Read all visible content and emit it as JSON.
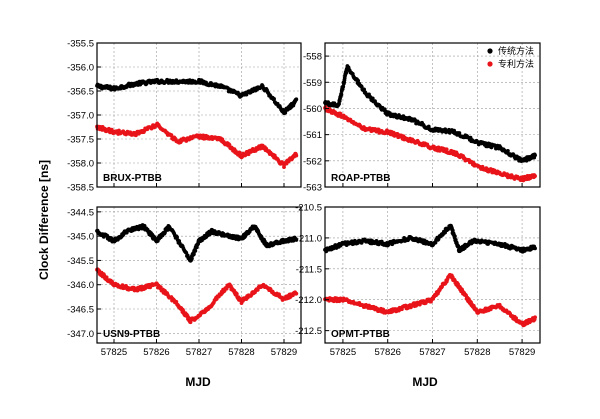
{
  "figure": {
    "ylabel": "Clock Difference [ns]",
    "xlabel_left": "MJD",
    "xlabel_right": "MJD"
  },
  "legend": {
    "items": [
      {
        "label": "传统方法",
        "color": "#000000"
      },
      {
        "label": "专利方法",
        "color": "#e8141a"
      }
    ]
  },
  "chart_data": [
    {
      "type": "scatter",
      "label": "BRUX-PTBB",
      "xlim": [
        57824.6,
        57829.4
      ],
      "ylim": [
        -358.5,
        -355.5
      ],
      "yticks": [
        "-355.5",
        "-356.0",
        "-356.5",
        "-357.0",
        "-357.5",
        "-358.0",
        "-358.5"
      ],
      "xticks": [],
      "series": [
        {
          "color": "#000000",
          "points": [
            [
              57824.6,
              -356.4
            ],
            [
              57825.0,
              -356.45
            ],
            [
              57825.5,
              -356.35
            ],
            [
              57826.0,
              -356.3
            ],
            [
              57826.5,
              -356.3
            ],
            [
              57827.0,
              -356.3
            ],
            [
              57827.5,
              -356.4
            ],
            [
              57828.0,
              -356.6
            ],
            [
              57828.5,
              -356.4
            ],
            [
              57829.0,
              -356.95
            ],
            [
              57829.3,
              -356.7
            ]
          ]
        },
        {
          "color": "#e8141a",
          "points": [
            [
              57824.6,
              -357.25
            ],
            [
              57825.0,
              -357.35
            ],
            [
              57825.5,
              -357.4
            ],
            [
              57826.0,
              -357.2
            ],
            [
              57826.5,
              -357.55
            ],
            [
              57827.0,
              -357.45
            ],
            [
              57827.5,
              -357.5
            ],
            [
              57828.0,
              -357.85
            ],
            [
              57828.5,
              -357.65
            ],
            [
              57829.0,
              -358.05
            ],
            [
              57829.3,
              -357.8
            ]
          ]
        }
      ]
    },
    {
      "type": "scatter",
      "label": "ROAP-PTBB",
      "xlim": [
        57824.6,
        57829.4
      ],
      "ylim": [
        -563,
        -557.5
      ],
      "yticks": [
        "-558",
        "-559",
        "-560",
        "-561",
        "-562",
        "-563"
      ],
      "xticks": [],
      "series": [
        {
          "color": "#000000",
          "points": [
            [
              57824.6,
              -559.8
            ],
            [
              57824.9,
              -559.9
            ],
            [
              57825.1,
              -558.4
            ],
            [
              57825.5,
              -559.4
            ],
            [
              57826.0,
              -560.2
            ],
            [
              57826.5,
              -560.4
            ],
            [
              57827.0,
              -560.8
            ],
            [
              57827.5,
              -560.9
            ],
            [
              57828.0,
              -561.3
            ],
            [
              57828.5,
              -561.5
            ],
            [
              57829.0,
              -562.0
            ],
            [
              57829.3,
              -561.8
            ]
          ]
        },
        {
          "color": "#e8141a",
          "points": [
            [
              57824.6,
              -560.0
            ],
            [
              57825.0,
              -560.3
            ],
            [
              57825.5,
              -560.8
            ],
            [
              57826.0,
              -560.9
            ],
            [
              57826.5,
              -561.2
            ],
            [
              57827.0,
              -561.5
            ],
            [
              57827.5,
              -561.7
            ],
            [
              57828.0,
              -562.2
            ],
            [
              57828.5,
              -562.5
            ],
            [
              57829.0,
              -562.7
            ],
            [
              57829.3,
              -562.55
            ]
          ]
        }
      ]
    },
    {
      "type": "scatter",
      "label": "USN9-PTBB",
      "xlim": [
        57824.6,
        57829.4
      ],
      "ylim": [
        -347.2,
        -344.4
      ],
      "yticks": [
        "-344.5",
        "-345.0",
        "-345.5",
        "-346.0",
        "-346.5",
        "-347.0"
      ],
      "xticks": [
        "57825",
        "57826",
        "57827",
        "57828",
        "57829"
      ],
      "series": [
        {
          "color": "#000000",
          "points": [
            [
              57824.6,
              -344.9
            ],
            [
              57825.0,
              -345.1
            ],
            [
              57825.3,
              -344.9
            ],
            [
              57825.7,
              -344.8
            ],
            [
              57826.0,
              -345.1
            ],
            [
              57826.3,
              -344.8
            ],
            [
              57826.8,
              -345.5
            ],
            [
              57827.0,
              -345.1
            ],
            [
              57827.3,
              -344.9
            ],
            [
              57827.7,
              -345.0
            ],
            [
              57828.0,
              -345.05
            ],
            [
              57828.3,
              -344.8
            ],
            [
              57828.6,
              -345.2
            ],
            [
              57829.0,
              -345.1
            ],
            [
              57829.3,
              -345.05
            ]
          ]
        },
        {
          "color": "#e8141a",
          "points": [
            [
              57824.6,
              -345.7
            ],
            [
              57825.0,
              -346.0
            ],
            [
              57825.5,
              -346.1
            ],
            [
              57826.0,
              -346.0
            ],
            [
              57826.5,
              -346.4
            ],
            [
              57826.8,
              -346.75
            ],
            [
              57827.2,
              -346.5
            ],
            [
              57827.7,
              -346.0
            ],
            [
              57828.0,
              -346.35
            ],
            [
              57828.5,
              -346.0
            ],
            [
              57829.0,
              -346.3
            ],
            [
              57829.3,
              -346.15
            ]
          ]
        }
      ]
    },
    {
      "type": "scatter",
      "label": "OPMT-PTBB",
      "xlim": [
        57824.6,
        57829.4
      ],
      "ylim": [
        -212.7,
        -210.5
      ],
      "yticks": [
        "-210.5",
        "-211.0",
        "-211.5",
        "-212.0",
        "-212.5"
      ],
      "xticks": [
        "57825",
        "57826",
        "57827",
        "57828",
        "57829"
      ],
      "series": [
        {
          "color": "#000000",
          "points": [
            [
              57824.6,
              -211.2
            ],
            [
              57825.0,
              -211.1
            ],
            [
              57825.5,
              -211.05
            ],
            [
              57826.0,
              -211.1
            ],
            [
              57826.5,
              -211.0
            ],
            [
              57827.0,
              -211.1
            ],
            [
              57827.4,
              -210.8
            ],
            [
              57827.6,
              -211.2
            ],
            [
              57827.9,
              -211.05
            ],
            [
              57828.5,
              -211.1
            ],
            [
              57829.0,
              -211.2
            ],
            [
              57829.3,
              -211.15
            ]
          ]
        },
        {
          "color": "#e8141a",
          "points": [
            [
              57824.6,
              -212.0
            ],
            [
              57825.0,
              -212.0
            ],
            [
              57825.5,
              -212.1
            ],
            [
              57826.0,
              -212.2
            ],
            [
              57826.5,
              -212.1
            ],
            [
              57827.0,
              -212.0
            ],
            [
              57827.4,
              -211.6
            ],
            [
              57827.7,
              -211.9
            ],
            [
              57828.0,
              -212.2
            ],
            [
              57828.5,
              -212.1
            ],
            [
              57829.0,
              -212.4
            ],
            [
              57829.3,
              -212.3
            ]
          ]
        }
      ]
    }
  ]
}
